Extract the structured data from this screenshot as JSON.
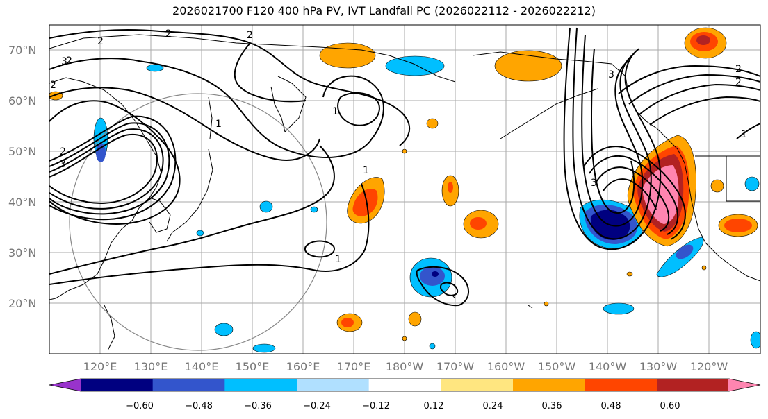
{
  "title": "2026021700 F120 400 hPa PV, IVT Landfall PC (2026022112 - 2026022212)",
  "lat_labels": [
    "70°N",
    "60°N",
    "50°N",
    "40°N",
    "30°N",
    "20°N"
  ],
  "lon_labels": [
    "120°E",
    "130°E",
    "140°E",
    "150°E",
    "160°E",
    "170°E",
    "180°W",
    "170°W",
    "160°W",
    "150°W",
    "140°W",
    "130°W",
    "120°W"
  ],
  "contour_labels": [
    "2",
    "3",
    "2",
    "2",
    "2",
    "3",
    "2",
    "1",
    "1",
    "2",
    "1",
    "1",
    "3",
    "3",
    "2",
    "2",
    "1"
  ],
  "colorbar": {
    "ticks": [
      "−0.60",
      "−0.48",
      "−0.36",
      "−0.24",
      "−0.12",
      "0.12",
      "0.24",
      "0.36",
      "0.48",
      "0.60"
    ],
    "colors": [
      "#9933cc",
      "#000080",
      "#3355cc",
      "#00bfff",
      "#b0e0ff",
      "#ffffff",
      "#ffe680",
      "#ffa500",
      "#ff4500",
      "#b22222",
      "#ff85b0"
    ]
  },
  "colors": {
    "grid": "#aaaaaa",
    "coast": "#000000",
    "circle": "#888888"
  }
}
